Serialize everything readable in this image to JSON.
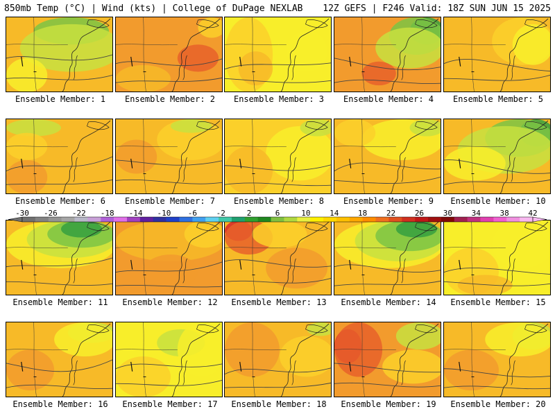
{
  "header": {
    "left": "850mb Temp (°C) | Wind (kts) | College of DuPage NEXLAB",
    "right": "12Z GEFS | F246 Valid: 18Z SUN JUN 15 2025"
  },
  "colorbar": {
    "labels": [
      "-30",
      "-26",
      "-22",
      "-18",
      "-14",
      "-10",
      "-6",
      "-2",
      "2",
      "6",
      "10",
      "14",
      "18",
      "22",
      "26",
      "30",
      "34",
      "38",
      "42"
    ],
    "colors": [
      "#707070",
      "#828282",
      "#949494",
      "#a6a6a6",
      "#b8b8c8",
      "#c8a0d8",
      "#b060d8",
      "#e070e8",
      "#a040c0",
      "#6020a0",
      "#3030a0",
      "#2040c8",
      "#3070e0",
      "#40a0f0",
      "#60d0f0",
      "#40c8a8",
      "#20a070",
      "#30a030",
      "#208820",
      "#80c040",
      "#b0d840",
      "#e8f040",
      "#fff000",
      "#ffd800",
      "#ffc000",
      "#ffa800",
      "#ff8c00",
      "#f07020",
      "#e05020",
      "#d03020",
      "#c01818",
      "#a01010",
      "#800808",
      "#a02050",
      "#c03080",
      "#e040b0",
      "#f060d0",
      "#f090e0",
      "#f8b8f0"
    ]
  },
  "palette": {
    "yellow": "#f8ee2a",
    "lightorange": "#fbd02a",
    "orange": "#f7ba28",
    "darkorange": "#f29b2d",
    "redorange": "#e8622a",
    "red": "#d6262a",
    "lime": "#c8e040",
    "green": "#7cc444",
    "darkgreen": "#36a040"
  },
  "members": [
    {
      "id": 1,
      "caption": "Ensemble Member: 1",
      "base": "orange",
      "blobs": [
        [
          "green",
          40,
          0,
          110,
          40
        ],
        [
          "lime",
          20,
          10,
          150,
          70
        ],
        [
          "yellow",
          0,
          60,
          60,
          50
        ]
      ]
    },
    {
      "id": 2,
      "caption": "Ensemble Member: 2",
      "base": "darkorange",
      "blobs": [
        [
          "redorange",
          90,
          40,
          60,
          40
        ],
        [
          "orange",
          0,
          70,
          80,
          40
        ],
        [
          "lightorange",
          120,
          0,
          40,
          30
        ]
      ]
    },
    {
      "id": 3,
      "caption": "Ensemble Member: 3",
      "base": "yellow",
      "blobs": [
        [
          "lightorange",
          0,
          0,
          70,
          110
        ],
        [
          "orange",
          20,
          50,
          50,
          50
        ],
        [
          "yellow",
          90,
          20,
          60,
          60
        ]
      ]
    },
    {
      "id": 4,
      "caption": "Ensemble Member: 4",
      "base": "darkorange",
      "blobs": [
        [
          "darkgreen",
          110,
          0,
          50,
          40
        ],
        [
          "green",
          80,
          0,
          80,
          55
        ],
        [
          "lime",
          60,
          15,
          100,
          60
        ],
        [
          "redorange",
          40,
          65,
          50,
          35
        ]
      ]
    },
    {
      "id": 5,
      "caption": "Ensemble Member: 5",
      "base": "orange",
      "blobs": [
        [
          "lightorange",
          70,
          0,
          90,
          70
        ],
        [
          "yellow",
          100,
          10,
          60,
          60
        ]
      ]
    },
    {
      "id": 6,
      "caption": "Ensemble Member: 6",
      "base": "orange",
      "blobs": [
        [
          "lime",
          0,
          0,
          80,
          25
        ],
        [
          "lightorange",
          0,
          20,
          60,
          40
        ],
        [
          "darkorange",
          0,
          60,
          60,
          50
        ]
      ]
    },
    {
      "id": 7,
      "caption": "Ensemble Member: 7",
      "base": "orange",
      "blobs": [
        [
          "lightorange",
          60,
          0,
          100,
          60
        ],
        [
          "lime",
          80,
          0,
          60,
          20
        ],
        [
          "darkorange",
          0,
          30,
          60,
          50
        ]
      ]
    },
    {
      "id": 8,
      "caption": "Ensemble Member: 8",
      "base": "lightorange",
      "blobs": [
        [
          "yellow",
          60,
          10,
          100,
          80
        ],
        [
          "orange",
          0,
          40,
          70,
          70
        ],
        [
          "lime",
          110,
          0,
          50,
          25
        ]
      ]
    },
    {
      "id": 9,
      "caption": "Ensemble Member: 9",
      "base": "orange",
      "blobs": [
        [
          "yellow",
          40,
          0,
          120,
          60
        ],
        [
          "lightorange",
          0,
          0,
          60,
          40
        ],
        [
          "lime",
          110,
          0,
          50,
          25
        ]
      ]
    },
    {
      "id": 10,
      "caption": "Ensemble Member: 10",
      "base": "orange",
      "blobs": [
        [
          "darkgreen",
          110,
          0,
          50,
          40
        ],
        [
          "green",
          60,
          0,
          100,
          55
        ],
        [
          "lime",
          20,
          10,
          140,
          70
        ],
        [
          "yellow",
          0,
          40,
          90,
          50
        ]
      ]
    },
    {
      "id": 11,
      "caption": "Ensemble Member: 11",
      "base": "orange",
      "blobs": [
        [
          "yellow",
          0,
          0,
          160,
          70
        ],
        [
          "lime",
          30,
          0,
          130,
          55
        ],
        [
          "green",
          60,
          0,
          100,
          40
        ],
        [
          "darkgreen",
          80,
          0,
          60,
          25
        ]
      ]
    },
    {
      "id": 12,
      "caption": "Ensemble Member: 12",
      "base": "darkorange",
      "blobs": [
        [
          "orange",
          0,
          0,
          160,
          60
        ],
        [
          "lightorange",
          100,
          0,
          60,
          40
        ],
        [
          "darkorange",
          40,
          50,
          80,
          50
        ]
      ]
    },
    {
      "id": 13,
      "caption": "Ensemble Member: 13",
      "base": "orange",
      "blobs": [
        [
          "red",
          0,
          0,
          40,
          30
        ],
        [
          "redorange",
          0,
          0,
          70,
          50
        ],
        [
          "darkorange",
          60,
          40,
          90,
          60
        ],
        [
          "lightorange",
          40,
          0,
          80,
          40
        ]
      ]
    },
    {
      "id": 14,
      "caption": "Ensemble Member: 14",
      "base": "orange",
      "blobs": [
        [
          "yellow",
          0,
          0,
          160,
          70
        ],
        [
          "lime",
          30,
          0,
          130,
          60
        ],
        [
          "green",
          60,
          0,
          100,
          45
        ],
        [
          "darkgreen",
          90,
          0,
          60,
          25
        ]
      ]
    },
    {
      "id": 15,
      "caption": "Ensemble Member: 15",
      "base": "yellow",
      "blobs": [
        [
          "lightorange",
          0,
          40,
          80,
          70
        ],
        [
          "orange",
          20,
          80,
          80,
          30
        ],
        [
          "yellow",
          70,
          0,
          90,
          70
        ]
      ]
    },
    {
      "id": 16,
      "caption": "Ensemble Member: 16",
      "base": "orange",
      "blobs": [
        [
          "lime",
          90,
          0,
          70,
          30
        ],
        [
          "yellow",
          70,
          0,
          90,
          50
        ],
        [
          "darkorange",
          0,
          40,
          70,
          60
        ]
      ]
    },
    {
      "id": 17,
      "caption": "Ensemble Member: 17",
      "base": "yellow",
      "blobs": [
        [
          "lightorange",
          0,
          50,
          80,
          60
        ],
        [
          "lime",
          60,
          10,
          70,
          40
        ],
        [
          "yellow",
          90,
          0,
          70,
          80
        ]
      ]
    },
    {
      "id": 18,
      "caption": "Ensemble Member: 18",
      "base": "orange",
      "blobs": [
        [
          "darkorange",
          0,
          0,
          80,
          80
        ],
        [
          "lightorange",
          80,
          20,
          80,
          60
        ],
        [
          "lime",
          120,
          0,
          40,
          20
        ]
      ]
    },
    {
      "id": 19,
      "caption": "Ensemble Member: 19",
      "base": "darkorange",
      "blobs": [
        [
          "red",
          0,
          10,
          40,
          50
        ],
        [
          "redorange",
          0,
          0,
          70,
          80
        ],
        [
          "lime",
          90,
          0,
          70,
          40
        ],
        [
          "lightorange",
          70,
          40,
          90,
          50
        ]
      ]
    },
    {
      "id": 20,
      "caption": "Ensemble Member: 20",
      "base": "orange",
      "blobs": [
        [
          "lime",
          100,
          0,
          60,
          40
        ],
        [
          "yellow",
          60,
          0,
          100,
          50
        ],
        [
          "darkorange",
          0,
          40,
          80,
          60
        ]
      ]
    }
  ]
}
